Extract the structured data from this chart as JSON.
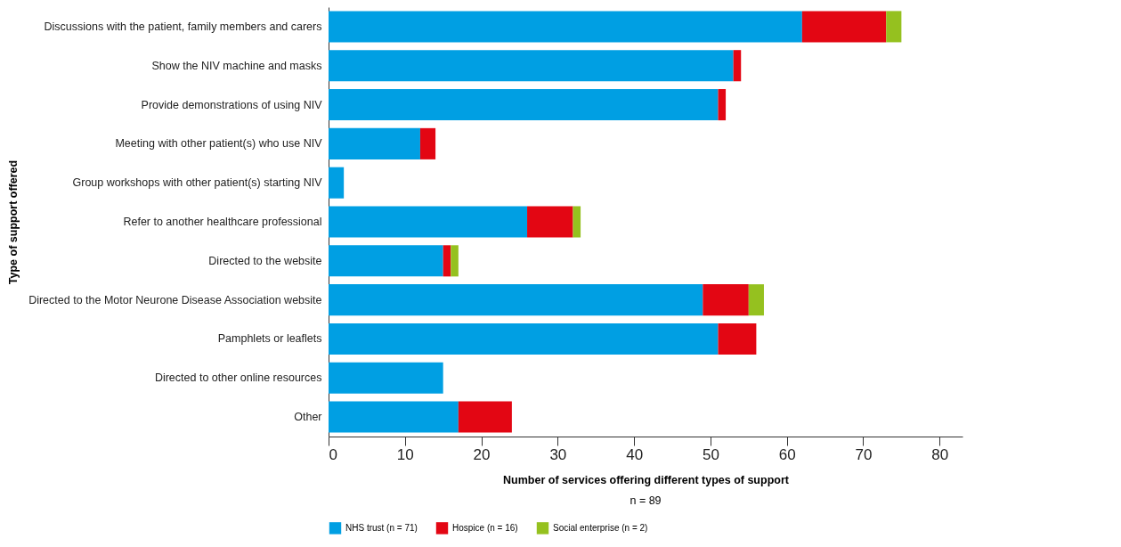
{
  "chart_data": {
    "type": "bar",
    "orientation": "horizontal",
    "stacked": true,
    "xlabel": "Number of services offering different types of support",
    "ylabel": "Type of support offered",
    "annotations": [
      "n = 89"
    ],
    "categories": [
      "Discussions with the patient, family members and carers",
      "Show the NIV machine and masks",
      "Provide demonstrations of using NIV",
      "Meeting with other patient(s) who use NIV",
      "Group workshops with other patient(s) starting NIV",
      "Refer to another healthcare professional",
      "Directed to the website",
      "Directed to the Motor Neurone Disease Association website",
      "Pamphlets or leaflets",
      "Directed to other online resources",
      "Other"
    ],
    "series": [
      {
        "name": "NHS trust (n = 71)",
        "color": "#009fe3",
        "values": [
          62,
          53,
          51,
          12,
          2,
          26,
          15,
          49,
          51,
          15,
          17
        ]
      },
      {
        "name": "Hospice (n = 16)",
        "color": "#e30613",
        "values": [
          11,
          1,
          1,
          2,
          0,
          6,
          1,
          6,
          5,
          0,
          7
        ]
      },
      {
        "name": "Social enterprise (n = 2)",
        "color": "#95c11f",
        "values": [
          2,
          0,
          0,
          0,
          0,
          1,
          1,
          2,
          0,
          0,
          0
        ]
      }
    ],
    "xlim": [
      0,
      83
    ],
    "xticks": [
      0,
      10,
      20,
      30,
      40,
      50,
      60,
      70,
      80
    ],
    "grid": false,
    "legend": "bottom"
  }
}
